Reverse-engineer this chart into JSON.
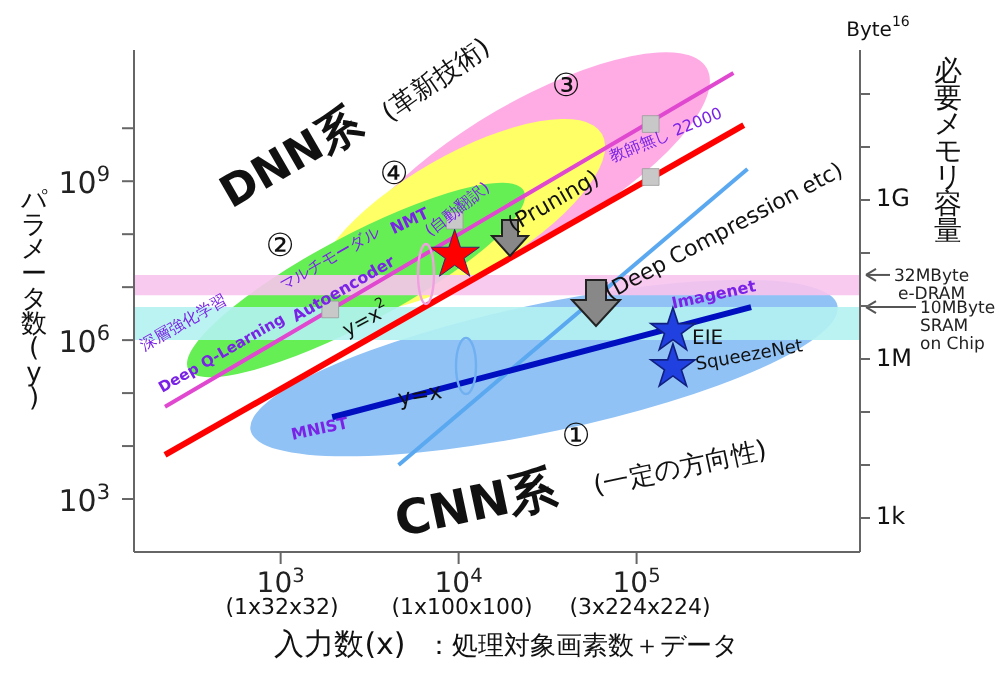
{
  "chart_data": {
    "type": "line",
    "xlabel": "入力数(x)",
    "ylabel": "パラメータ数(y)",
    "y2label": "必要メモリ容量",
    "log": "xy",
    "xlim": [
      150,
      1800000
    ],
    "ylim": [
      100,
      300000000000
    ],
    "xticks": [
      {
        "value": 1000,
        "label": "10$^{3}$"
      },
      {
        "value": 10000,
        "label": "10$^{4}$"
      },
      {
        "value": 100000,
        "label": "10$^{5}$"
      }
    ],
    "yticks": [
      {
        "value": 1000,
        "label": "10$^{3}$"
      },
      {
        "value": 10000,
        "label": null
      },
      {
        "value": 100000,
        "label": null
      },
      {
        "value": 1000000,
        "label": "10$^{6}$"
      },
      {
        "value": 10000000,
        "label": null
      },
      {
        "value": 100000000,
        "label": null
      },
      {
        "value": 1000000000,
        "label": "10$^{9}$"
      },
      {
        "value": 10000000000,
        "label": null
      }
    ],
    "series": [
      {
        "color": "#e048d0",
        "x": [
          224,
          350000
        ],
        "values": [
          55000,
          110000000000
        ]
      },
      {
        "color": "#ff0000",
        "x": [
          224,
          400000
        ],
        "values": [
          6800,
          11500000000
        ]
      },
      {
        "color": "#5aa8f0",
        "x": [
          4600,
          420000
        ],
        "values": [
          4400,
          1700000000
        ]
      },
      {
        "color": "#0010c0",
        "x": [
          1950,
          440000
        ],
        "values": [
          35000,
          4200000
        ]
      },
      {
        "type": "scatter",
        "color": "#c8c8c8",
        "marker": "square",
        "x": [
          1900,
          9500,
          120000,
          120000
        ],
        "values": [
          3800000,
          180000000,
          12000000000,
          1200000000
        ]
      },
      {
        "type": "scatter",
        "color": "#ff0000",
        "marker": "star",
        "x": [
          9500
        ],
        "values": [
          40000000
        ]
      },
      {
        "type": "scatter",
        "color": "#2040e0",
        "marker": "star",
        "x": [
          160000,
          160000
        ],
        "values": [
          1500000,
          310000
        ]
      }
    ],
    "bands": [
      {
        "axis": "y",
        "from": 7000000,
        "to": 17000000,
        "color": "#f8c4ee",
        "label": "32MByte\ne-DRAM"
      },
      {
        "axis": "y",
        "from": 1000000,
        "to": 4200000,
        "color": "#b4f2f2",
        "label": "10MByte\nSRAM\non Chip"
      }
    ],
    "annotations": [
      "DNN系",
      "(革新技術)",
      "CNN系",
      "(一定の方向性)",
      "①",
      "②",
      "③",
      "④",
      "マルチモーダル",
      "Autoencoder",
      "深層強化学習",
      "Deep Q-Learning",
      "NMT",
      "(自動翻訳)",
      "教師無し 22000",
      "(Pruning)",
      "(Deep Compression etc)",
      "Byte$^{16}$",
      "：処理対象画素数＋データ",
      "(1x32x32)",
      "(1x100x100)",
      "(3x224x224)",
      "y=x$^{2}$",
      "MNIST",
      "y=x",
      "Imagenet",
      "EIE",
      "SqueezeNet",
      "1k",
      "1M",
      "1G"
    ]
  }
}
